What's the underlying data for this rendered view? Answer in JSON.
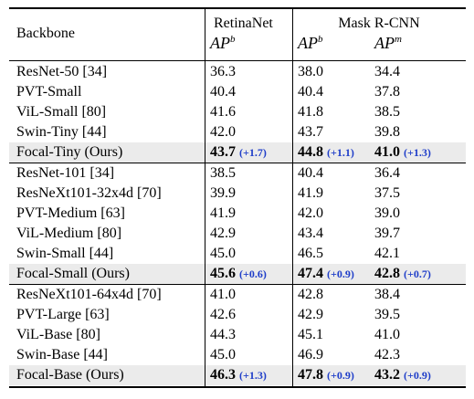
{
  "header": {
    "backbone": "Backbone",
    "retinanet": "RetinaNet",
    "maskrcnn": "Mask R-CNN",
    "ap_base": "AP",
    "sup_b": "b",
    "sup_m": "m"
  },
  "rows": [
    {
      "name": "ResNet-50 [34]",
      "r": "36.3",
      "mb": "38.0",
      "mm": "34.4"
    },
    {
      "name": "PVT-Small",
      "r": "40.4",
      "mb": "40.4",
      "mm": "37.8"
    },
    {
      "name": "ViL-Small [80]",
      "r": "41.6",
      "mb": "41.8",
      "mm": "38.5"
    },
    {
      "name": "Swin-Tiny [44]",
      "r": "42.0",
      "mb": "43.7",
      "mm": "39.8"
    },
    {
      "name": "Focal-Tiny (Ours)",
      "r": "43.7",
      "rd": "(+1.7)",
      "mb": "44.8",
      "mbd": "(+1.1)",
      "mm": "41.0",
      "mmd": "(+1.3)"
    },
    {
      "name": "ResNet-101 [34]",
      "r": "38.5",
      "mb": "40.4",
      "mm": "36.4"
    },
    {
      "name": "ResNeXt101-32x4d [70]",
      "r": "39.9",
      "mb": "41.9",
      "mm": "37.5"
    },
    {
      "name": "PVT-Medium [63]",
      "r": "41.9",
      "mb": "42.0",
      "mm": "39.0"
    },
    {
      "name": "ViL-Medium [80]",
      "r": "42.9",
      "mb": "43.4",
      "mm": "39.7"
    },
    {
      "name": "Swin-Small [44]",
      "r": "45.0",
      "mb": "46.5",
      "mm": "42.1"
    },
    {
      "name": "Focal-Small (Ours)",
      "r": "45.6",
      "rd": "(+0.6)",
      "mb": "47.4",
      "mbd": "(+0.9)",
      "mm": "42.8",
      "mmd": "(+0.7)"
    },
    {
      "name": "ResNeXt101-64x4d [70]",
      "r": "41.0",
      "mb": "42.8",
      "mm": "38.4"
    },
    {
      "name": "PVT-Large [63]",
      "r": "42.6",
      "mb": "42.9",
      "mm": "39.5"
    },
    {
      "name": "ViL-Base [80]",
      "r": "44.3",
      "mb": "45.1",
      "mm": "41.0"
    },
    {
      "name": "Swin-Base [44]",
      "r": "45.0",
      "mb": "46.9",
      "mm": "42.3"
    },
    {
      "name": "Focal-Base (Ours)",
      "r": "46.3",
      "rd": "(+1.3)",
      "mb": "47.8",
      "mbd": "(+0.9)",
      "mm": "43.2",
      "mmd": "(+0.9)"
    }
  ],
  "colors": {
    "delta": "#1f3ec9",
    "highlight": "#ebebeb"
  }
}
